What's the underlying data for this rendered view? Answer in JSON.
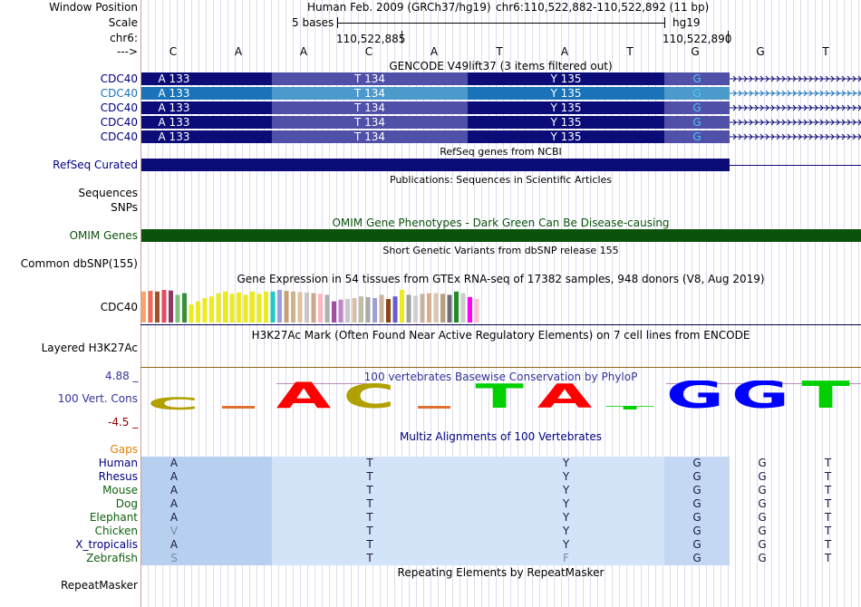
{
  "header": {
    "window_position_label": "Window Position",
    "scale_label": "Scale",
    "chrom_label": "chr6:",
    "arrow_label": "--->",
    "assembly_text": "Human Feb. 2009 (GRCh37/hg19)",
    "position_text": "chr6:110,522,882-110,522,892 (11 bp)",
    "scale_text": "5 bases",
    "assembly_short": "hg19",
    "coord_left": "110,522,885",
    "coord_right": "110,522,890",
    "bases": [
      "C",
      "A",
      "A",
      "C",
      "A",
      "T",
      "A",
      "T",
      "G",
      "G",
      "T"
    ]
  },
  "tracks": {
    "gencode": {
      "title": "GENCODE V49lift37 (3 items filtered out)",
      "rows": [
        {
          "name": "CDC40",
          "highlight": false,
          "codons": [
            "A 133",
            "T 134",
            "Y 135",
            "G"
          ]
        },
        {
          "name": "CDC40",
          "highlight": true,
          "codons": [
            "A 133",
            "T 134",
            "Y 135",
            "G"
          ]
        },
        {
          "name": "CDC40",
          "highlight": false,
          "codons": [
            "A 133",
            "T 134",
            "Y 135",
            "G"
          ]
        },
        {
          "name": "CDC40",
          "highlight": false,
          "codons": [
            "A 133",
            "T 134",
            "Y 135",
            "G"
          ]
        },
        {
          "name": "CDC40",
          "highlight": false,
          "codons": [
            "A 133",
            "T 134",
            "Y 135",
            "G"
          ]
        }
      ]
    },
    "refseq": {
      "title": "RefSeq genes from NCBI",
      "label": "RefSeq Curated"
    },
    "publications": {
      "title": "Publications: Sequences in Scientific Articles",
      "label1": "Sequences",
      "label2": "SNPs"
    },
    "omim": {
      "title": "OMIM Gene Phenotypes - Dark Green Can Be Disease-causing",
      "label": "OMIM Genes",
      "color": "#0b530b"
    },
    "dbsnp": {
      "title": "Short Genetic Variants from dbSNP release 155",
      "label": "Common dbSNP(155)"
    },
    "gtex": {
      "title": "Gene Expression in 54 tissues from GTEx RNA-seq of 17382 samples, 948 donors (V8, Aug 2019)",
      "label": "CDC40",
      "bars": [
        {
          "c": "#f8a56a",
          "v": 0.95
        },
        {
          "c": "#f06b4f",
          "v": 0.97
        },
        {
          "c": "#a0522d",
          "v": 0.95
        },
        {
          "c": "#e84a5f",
          "v": 1.0
        },
        {
          "c": "#8b3a62",
          "v": 0.98
        },
        {
          "c": "#7ec47c",
          "v": 0.85
        },
        {
          "c": "#3a8d3a",
          "v": 0.9
        },
        {
          "c": "#ebeb1e",
          "v": 0.55
        },
        {
          "c": "#ebeb1e",
          "v": 0.65
        },
        {
          "c": "#ebeb1e",
          "v": 0.75
        },
        {
          "c": "#ebeb1e",
          "v": 0.8
        },
        {
          "c": "#ebeb1e",
          "v": 0.9
        },
        {
          "c": "#ebeb1e",
          "v": 0.95
        },
        {
          "c": "#ebeb1e",
          "v": 0.88
        },
        {
          "c": "#ebeb1e",
          "v": 0.92
        },
        {
          "c": "#ebeb1e",
          "v": 0.85
        },
        {
          "c": "#ebeb1e",
          "v": 0.95
        },
        {
          "c": "#ebeb1e",
          "v": 0.88
        },
        {
          "c": "#ebeb1e",
          "v": 0.95
        },
        {
          "c": "#20c8c8",
          "v": 0.95
        },
        {
          "c": "#9aa0d8",
          "v": 1.0
        },
        {
          "c": "#c8a078",
          "v": 0.97
        },
        {
          "c": "#d2b48c",
          "v": 0.95
        },
        {
          "c": "#e0c0a0",
          "v": 0.93
        },
        {
          "c": "#c8c8c8",
          "v": 0.92
        },
        {
          "c": "#ccaa88",
          "v": 0.9
        },
        {
          "c": "#ffb6c1",
          "v": 0.88
        },
        {
          "c": "#b0b0b0",
          "v": 0.85
        },
        {
          "c": "#a050a0",
          "v": 0.65
        },
        {
          "c": "#c084c8",
          "v": 0.7
        },
        {
          "c": "#c8c8c8",
          "v": 0.72
        },
        {
          "c": "#d8c0a8",
          "v": 0.75
        },
        {
          "c": "#c0c0a0",
          "v": 0.8
        },
        {
          "c": "#aaaaaa",
          "v": 0.78
        },
        {
          "c": "#a0a0d0",
          "v": 0.75
        },
        {
          "c": "#c8b4a0",
          "v": 0.85
        },
        {
          "c": "#8b4513",
          "v": 0.72
        },
        {
          "c": "#6a5acd",
          "v": 0.8
        },
        {
          "c": "#ebeb1e",
          "v": 1.0
        },
        {
          "c": "#a0a0a0",
          "v": 0.85
        },
        {
          "c": "#d0d0d0",
          "v": 0.82
        },
        {
          "c": "#c8b4a0",
          "v": 0.88
        },
        {
          "c": "#d8b090",
          "v": 0.9
        },
        {
          "c": "#d8c8b0",
          "v": 0.9
        },
        {
          "c": "#b8a080",
          "v": 0.88
        },
        {
          "c": "#707070",
          "v": 0.85
        },
        {
          "c": "#228b22",
          "v": 0.95
        },
        {
          "c": "#cccccc",
          "v": 0.9
        },
        {
          "c": "#ff00ff",
          "v": 0.78
        },
        {
          "c": "#f8c0d0",
          "v": 0.72
        }
      ]
    },
    "h3k27ac": {
      "title": "H3K27Ac Mark (Often Found Near Active Regulatory Elements) on 7 cell lines from ENCODE",
      "label": "Layered H3K27Ac"
    },
    "cons": {
      "title": "100 vertebrates Basewise Conservation by PhyloP",
      "label": "100 Vert. Cons",
      "max": "4.88 _",
      "min": "-4.5 _",
      "letters": [
        {
          "b": "C",
          "c": "#b0a000",
          "s": "neg",
          "h": 0.45
        },
        {
          "b": "",
          "c": "#e07030",
          "s": "neg",
          "h": 0.1
        },
        {
          "b": "A",
          "c": "#ff0000",
          "s": "pos",
          "h": 0.95
        },
        {
          "b": "C",
          "c": "#b0a000",
          "s": "pos",
          "h": 0.9
        },
        {
          "b": "",
          "c": "#e07030",
          "s": "neg",
          "h": 0.05
        },
        {
          "b": "T",
          "c": "#00d000",
          "s": "pos",
          "h": 0.9
        },
        {
          "b": "A",
          "c": "#ff0000",
          "s": "pos",
          "h": 0.9
        },
        {
          "b": "T",
          "c": "#00d000",
          "s": "neg",
          "h": 0.1
        },
        {
          "b": "G",
          "c": "#0000ff",
          "s": "pos",
          "h": 1.0
        },
        {
          "b": "G",
          "c": "#0000ff",
          "s": "pos",
          "h": 1.0
        },
        {
          "b": "T",
          "c": "#00d000",
          "s": "pos",
          "h": 1.0
        }
      ]
    },
    "multiz": {
      "title": "Multiz Alignments of 100 Vertebrates",
      "gaps_label": "Gaps",
      "species": [
        {
          "name": "Human",
          "color": "#000080",
          "seq": [
            "A",
            "T",
            "Y",
            "G",
            "G",
            "T"
          ]
        },
        {
          "name": "Rhesus",
          "color": "#000080",
          "seq": [
            "A",
            "T",
            "Y",
            "G",
            "G",
            "T"
          ]
        },
        {
          "name": "Mouse",
          "color": "#106010",
          "seq": [
            "A",
            "T",
            "Y",
            "G",
            "G",
            "T"
          ]
        },
        {
          "name": "Dog",
          "color": "#106010",
          "seq": [
            "A",
            "T",
            "Y",
            "G",
            "G",
            "T"
          ]
        },
        {
          "name": "Elephant",
          "color": "#106010",
          "seq": [
            "A",
            "T",
            "Y",
            "G",
            "G",
            "T"
          ]
        },
        {
          "name": "Chicken",
          "color": "#106010",
          "seq": [
            "V",
            "T",
            "Y",
            "G",
            "G",
            "T"
          ]
        },
        {
          "name": "X_tropicalis",
          "color": "#000080",
          "seq": [
            "A",
            "T",
            "Y",
            "G",
            "G",
            "T"
          ]
        },
        {
          "name": "Zebrafish",
          "color": "#106010",
          "seq": [
            "S",
            "T",
            "F",
            "G",
            "G",
            "T"
          ]
        }
      ]
    },
    "rmsk": {
      "title": "Repeating Elements by RepeatMasker",
      "label": "RepeatMasker"
    }
  }
}
